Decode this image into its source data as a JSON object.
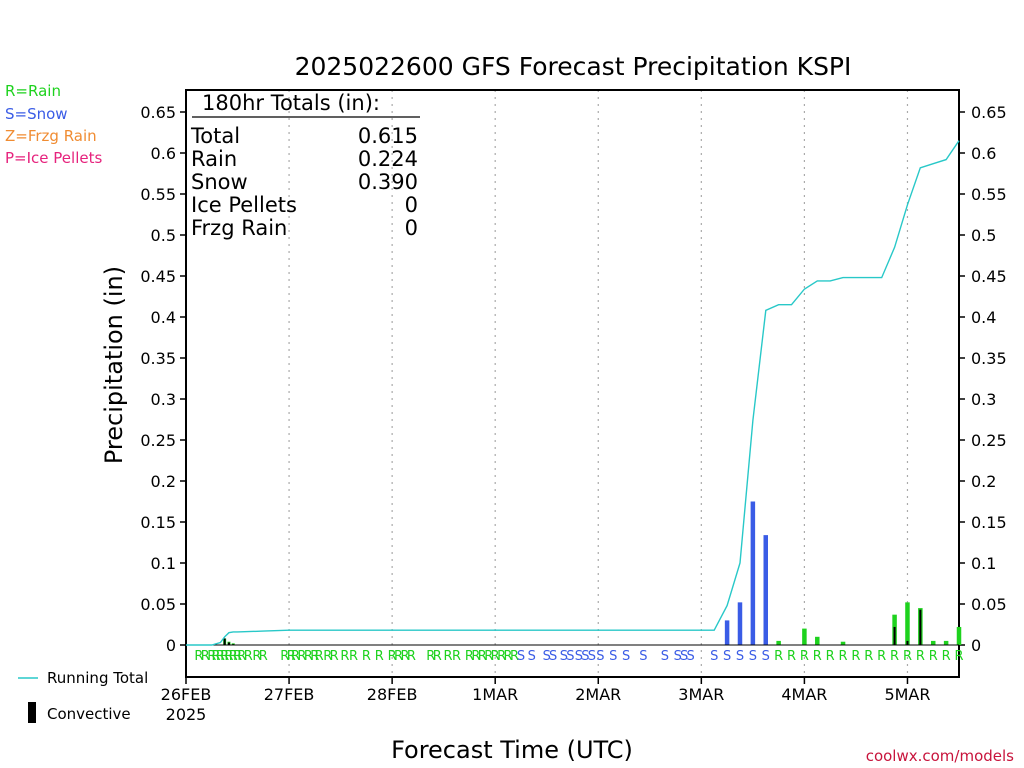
{
  "colors": {
    "rain": "#1ed21e",
    "snow": "#3a5ce6",
    "frzg_rain": "#f08c32",
    "ice_pellets": "#e6237d",
    "running_total": "#28c8c8",
    "convective": "#000000",
    "credit": "#c8143c",
    "grid": "#aaaaaa"
  },
  "legend_top": [
    {
      "key": "rain",
      "label": "R=Rain"
    },
    {
      "key": "snow",
      "label": "S=Snow"
    },
    {
      "key": "frzg_rain",
      "label": "Z=Frzg Rain"
    },
    {
      "key": "ice_pellets",
      "label": "P=Ice Pellets"
    }
  ],
  "legend_bottom": {
    "running_total": "Running Total",
    "convective": "Convective"
  },
  "totals_box": {
    "title": "180hr Totals (in):",
    "rows": [
      {
        "label": "Total",
        "value": "0.615"
      },
      {
        "label": "Rain",
        "value": "0.224"
      },
      {
        "label": "Snow",
        "value": "0.390"
      },
      {
        "label": "Ice Pellets",
        "value": "0"
      },
      {
        "label": "Frzg Rain",
        "value": "0"
      }
    ]
  },
  "credit": "coolwx.com/models",
  "chart_data": {
    "type": "bar",
    "title": "2025022600 GFS Forecast Precipitation KSPI",
    "xlabel": "Forecast Time (UTC)",
    "ylabel": "Precipitation (in)",
    "ylim": [
      -0.005,
      0.68
    ],
    "yticks": [
      0,
      0.05,
      0.1,
      0.15,
      0.2,
      0.25,
      0.3,
      0.35,
      0.4,
      0.45,
      0.5,
      0.55,
      0.6,
      0.65
    ],
    "ytick_labels": [
      "0",
      "0.05",
      "0.1",
      "0.15",
      "0.2",
      "0.25",
      "0.3",
      "0.35",
      "0.4",
      "0.45",
      "0.5",
      "0.55",
      "0.6",
      "0.65"
    ],
    "xlim_hours": [
      0,
      180
    ],
    "xticks": [
      {
        "hour": 0,
        "label": "26FEB",
        "sub": "2025"
      },
      {
        "hour": 24,
        "label": "27FEB",
        "sub": ""
      },
      {
        "hour": 48,
        "label": "28FEB",
        "sub": ""
      },
      {
        "hour": 72,
        "label": "1MAR",
        "sub": ""
      },
      {
        "hour": 96,
        "label": "2MAR",
        "sub": ""
      },
      {
        "hour": 120,
        "label": "3MAR",
        "sub": ""
      },
      {
        "hour": 144,
        "label": "4MAR",
        "sub": ""
      },
      {
        "hour": 168,
        "label": "5MAR",
        "sub": ""
      }
    ],
    "grid": "vertical dotted",
    "bars": [
      {
        "hour": 9,
        "total": 0.008,
        "convective": 0.008,
        "type": "R"
      },
      {
        "hour": 10,
        "total": 0.004,
        "convective": 0.003,
        "type": "R"
      },
      {
        "hour": 11,
        "total": 0.002,
        "convective": 0.001,
        "type": "R"
      },
      {
        "hour": 126,
        "total": 0.03,
        "convective": 0,
        "type": "S"
      },
      {
        "hour": 129,
        "total": 0.052,
        "convective": 0,
        "type": "S"
      },
      {
        "hour": 132,
        "total": 0.175,
        "convective": 0,
        "type": "S"
      },
      {
        "hour": 135,
        "total": 0.134,
        "convective": 0,
        "type": "S"
      },
      {
        "hour": 138,
        "total": 0.005,
        "convective": 0,
        "type": "R"
      },
      {
        "hour": 144,
        "total": 0.02,
        "convective": 0,
        "type": "R"
      },
      {
        "hour": 147,
        "total": 0.01,
        "convective": 0,
        "type": "R"
      },
      {
        "hour": 153,
        "total": 0.004,
        "convective": 0,
        "type": "R"
      },
      {
        "hour": 165,
        "total": 0.037,
        "convective": 0.022,
        "type": "R"
      },
      {
        "hour": 168,
        "total": 0.052,
        "convective": 0.005,
        "type": "R"
      },
      {
        "hour": 171,
        "total": 0.045,
        "convective": 0.043,
        "type": "R"
      },
      {
        "hour": 174,
        "total": 0.005,
        "convective": 0,
        "type": "R"
      },
      {
        "hour": 177,
        "total": 0.005,
        "convective": 0,
        "type": "R"
      },
      {
        "hour": 180,
        "total": 0.022,
        "convective": 0,
        "type": "R"
      }
    ],
    "running_total": [
      [
        0,
        0
      ],
      [
        6,
        0
      ],
      [
        8,
        0.003
      ],
      [
        9,
        0.01
      ],
      [
        10,
        0.015
      ],
      [
        11,
        0.016
      ],
      [
        12,
        0.016
      ],
      [
        18,
        0.017
      ],
      [
        24,
        0.018
      ],
      [
        120,
        0.018
      ],
      [
        123,
        0.018
      ],
      [
        126,
        0.048
      ],
      [
        129,
        0.1
      ],
      [
        132,
        0.274
      ],
      [
        135,
        0.408
      ],
      [
        138,
        0.415
      ],
      [
        141,
        0.415
      ],
      [
        144,
        0.434
      ],
      [
        147,
        0.444
      ],
      [
        150,
        0.444
      ],
      [
        153,
        0.448
      ],
      [
        162,
        0.448
      ],
      [
        165,
        0.485
      ],
      [
        168,
        0.537
      ],
      [
        171,
        0.582
      ],
      [
        174,
        0.587
      ],
      [
        177,
        0.592
      ],
      [
        180,
        0.615
      ]
    ],
    "ptype_strip": [
      {
        "hour": 3,
        "type": "R"
      },
      {
        "hour": 4.5,
        "type": "R"
      },
      {
        "hour": 6,
        "type": "R"
      },
      {
        "hour": 7,
        "type": "R"
      },
      {
        "hour": 8,
        "type": "R"
      },
      {
        "hour": 9,
        "type": "R"
      },
      {
        "hour": 10,
        "type": "R"
      },
      {
        "hour": 11,
        "type": "R"
      },
      {
        "hour": 12,
        "type": "R"
      },
      {
        "hour": 13,
        "type": "R"
      },
      {
        "hour": 14.5,
        "type": "R"
      },
      {
        "hour": 16.5,
        "type": "R"
      },
      {
        "hour": 18,
        "type": "R"
      },
      {
        "hour": 23,
        "type": "R"
      },
      {
        "hour": 24.5,
        "type": "R"
      },
      {
        "hour": 25.5,
        "type": "R"
      },
      {
        "hour": 27,
        "type": "R"
      },
      {
        "hour": 28.5,
        "type": "R"
      },
      {
        "hour": 30,
        "type": "R"
      },
      {
        "hour": 31,
        "type": "R"
      },
      {
        "hour": 33,
        "type": "R"
      },
      {
        "hour": 34.5,
        "type": "R"
      },
      {
        "hour": 37,
        "type": "R"
      },
      {
        "hour": 39,
        "type": "R"
      },
      {
        "hour": 42,
        "type": "R"
      },
      {
        "hour": 45,
        "type": "R"
      },
      {
        "hour": 48,
        "type": "R"
      },
      {
        "hour": 49.5,
        "type": "R"
      },
      {
        "hour": 51,
        "type": "R"
      },
      {
        "hour": 52.5,
        "type": "R"
      },
      {
        "hour": 57,
        "type": "R"
      },
      {
        "hour": 58.5,
        "type": "R"
      },
      {
        "hour": 61,
        "type": "R"
      },
      {
        "hour": 63,
        "type": "R"
      },
      {
        "hour": 66,
        "type": "R"
      },
      {
        "hour": 67.5,
        "type": "R"
      },
      {
        "hour": 69,
        "type": "R"
      },
      {
        "hour": 70.5,
        "type": "R"
      },
      {
        "hour": 72,
        "type": "R"
      },
      {
        "hour": 73.5,
        "type": "R"
      },
      {
        "hour": 75,
        "type": "R"
      },
      {
        "hour": 76.5,
        "type": "R"
      },
      {
        "hour": 78,
        "type": "S"
      },
      {
        "hour": 80.5,
        "type": "S"
      },
      {
        "hour": 84,
        "type": "S"
      },
      {
        "hour": 85.5,
        "type": "S"
      },
      {
        "hour": 88,
        "type": "S"
      },
      {
        "hour": 89.5,
        "type": "S"
      },
      {
        "hour": 91.5,
        "type": "S"
      },
      {
        "hour": 93,
        "type": "S"
      },
      {
        "hour": 94.5,
        "type": "S"
      },
      {
        "hour": 96.5,
        "type": "S"
      },
      {
        "hour": 99.5,
        "type": "S"
      },
      {
        "hour": 102.5,
        "type": "S"
      },
      {
        "hour": 106.5,
        "type": "S"
      },
      {
        "hour": 111.5,
        "type": "S"
      },
      {
        "hour": 114.5,
        "type": "S"
      },
      {
        "hour": 116,
        "type": "S"
      },
      {
        "hour": 117.5,
        "type": "S"
      },
      {
        "hour": 123,
        "type": "S"
      },
      {
        "hour": 126,
        "type": "S"
      },
      {
        "hour": 129,
        "type": "S"
      },
      {
        "hour": 132,
        "type": "S"
      },
      {
        "hour": 135,
        "type": "S"
      },
      {
        "hour": 138,
        "type": "R"
      },
      {
        "hour": 141,
        "type": "R"
      },
      {
        "hour": 144,
        "type": "R"
      },
      {
        "hour": 147,
        "type": "R"
      },
      {
        "hour": 150,
        "type": "R"
      },
      {
        "hour": 153,
        "type": "R"
      },
      {
        "hour": 156,
        "type": "R"
      },
      {
        "hour": 159,
        "type": "R"
      },
      {
        "hour": 162,
        "type": "R"
      },
      {
        "hour": 165,
        "type": "R"
      },
      {
        "hour": 168,
        "type": "R"
      },
      {
        "hour": 171,
        "type": "R"
      },
      {
        "hour": 174,
        "type": "R"
      },
      {
        "hour": 177,
        "type": "R"
      },
      {
        "hour": 180,
        "type": "R"
      }
    ]
  }
}
